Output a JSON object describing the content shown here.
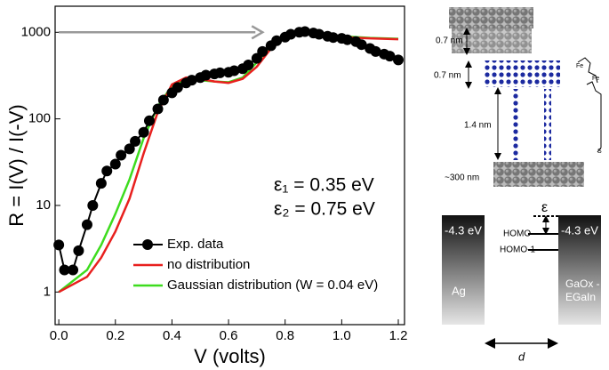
{
  "chart_data": {
    "type": "line",
    "log_y": true,
    "xlabel": "V (volts)",
    "ylabel": "R = I(V) / I(-V)",
    "xlim": [
      -0.013,
      1.222
    ],
    "ylim": [
      0.42,
      2000
    ],
    "xticks": [
      {
        "value": 0,
        "label": "0.0"
      },
      {
        "value": 0.2,
        "label": "0.2"
      },
      {
        "value": 0.4,
        "label": "0.4"
      },
      {
        "value": 0.6,
        "label": "0.6"
      },
      {
        "value": 0.8,
        "label": "0.8"
      },
      {
        "value": 1,
        "label": "1.0"
      },
      {
        "value": 1.2,
        "label": "1.2"
      }
    ],
    "yticks": [
      1,
      10,
      100,
      1000
    ],
    "legend_loc": "lower right",
    "annotations": [
      "ε₁ = 0.35 eV",
      "ε₂ = 0.75 eV"
    ],
    "arrow": {
      "color": "#999999",
      "x": [
        0,
        0.72
      ],
      "y": 1000
    },
    "series": [
      {
        "name": "Exp. data",
        "color": "#000000",
        "marker": true,
        "x": [
          0,
          0.02,
          0.05,
          0.07,
          0.1,
          0.12,
          0.15,
          0.17,
          0.2,
          0.22,
          0.25,
          0.27,
          0.3,
          0.32,
          0.35,
          0.37,
          0.4,
          0.42,
          0.45,
          0.47,
          0.5,
          0.52,
          0.55,
          0.57,
          0.6,
          0.62,
          0.65,
          0.67,
          0.7,
          0.72,
          0.75,
          0.77,
          0.8,
          0.82,
          0.85,
          0.87,
          0.9,
          0.92,
          0.95,
          0.97,
          1.0,
          1.02,
          1.05,
          1.07,
          1.1,
          1.12,
          1.15,
          1.17,
          1.2
        ],
        "values": [
          3.5,
          1.8,
          1.8,
          3,
          6,
          10,
          18,
          25,
          30,
          38,
          45,
          55,
          70,
          95,
          130,
          165,
          200,
          230,
          260,
          280,
          300,
          320,
          330,
          340,
          345,
          360,
          380,
          420,
          500,
          600,
          700,
          800,
          880,
          950,
          1000,
          1020,
          980,
          950,
          900,
          870,
          850,
          820,
          780,
          720,
          650,
          600,
          560,
          530,
          480
        ]
      },
      {
        "name": "no distribution",
        "color": "#e8201e",
        "marker": false,
        "x": [
          0,
          0.1,
          0.15,
          0.2,
          0.25,
          0.3,
          0.35,
          0.4,
          0.45,
          0.5,
          0.55,
          0.6,
          0.65,
          0.7,
          0.75,
          0.8,
          0.85,
          0.9,
          1.0,
          1.1,
          1.2
        ],
        "values": [
          1,
          1.5,
          2.5,
          5,
          12,
          40,
          120,
          250,
          300,
          290,
          270,
          260,
          290,
          400,
          650,
          900,
          1000,
          950,
          880,
          850,
          830
        ]
      },
      {
        "name": "Gaussian distribution (W = 0.04 eV)",
        "color": "#3ddc1e",
        "marker": false,
        "x": [
          0,
          0.1,
          0.15,
          0.2,
          0.25,
          0.3,
          0.35,
          0.4,
          0.45,
          0.5,
          0.55,
          0.6,
          0.65,
          0.7,
          0.75,
          0.8,
          0.85,
          0.9,
          1.0,
          1.1,
          1.2
        ],
        "values": [
          1,
          1.8,
          3.5,
          8,
          20,
          60,
          140,
          240,
          280,
          280,
          270,
          265,
          300,
          450,
          700,
          900,
          980,
          950,
          900,
          860,
          840
        ]
      }
    ]
  },
  "diagram": {
    "gap_top": "0.7 nm",
    "gap_mid": "0.7 nm",
    "length": "1.4 nm",
    "size": "~300 nm",
    "left_level": "-4.3 eV",
    "right_level": "-4.3 eV",
    "homo": "HOMO",
    "homo1": "HOMO-1",
    "eps": "ε",
    "left_electrode": "Ag",
    "right_electrode": [
      "GaOx -",
      "EGaIn"
    ],
    "distance": "d",
    "fe1": "Fe",
    "fe2": "Fe",
    "s": "S"
  }
}
